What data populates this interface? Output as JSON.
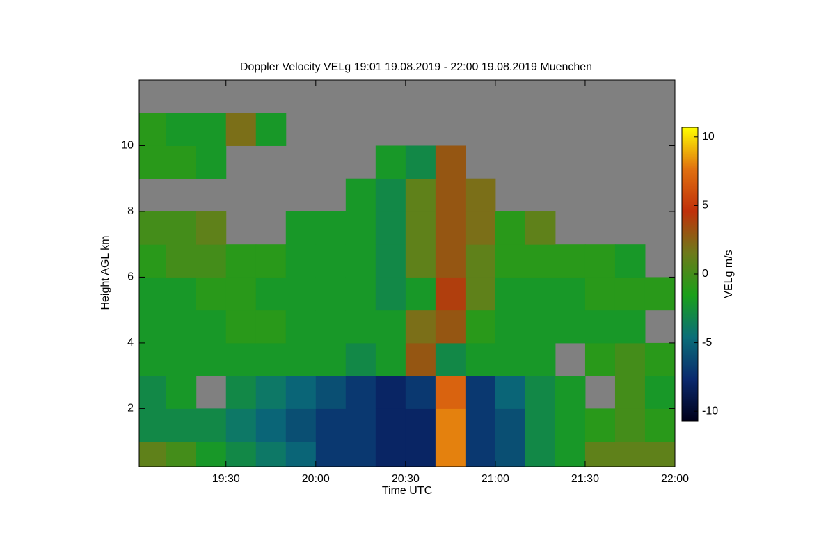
{
  "chart_data": {
    "type": "heatmap",
    "title": "Doppler Velocity VELg   19:01 19.08.2019 - 22:00 19.08.2019 Muenchen",
    "x_label": "Time UTC",
    "y_label": "Height AGL km",
    "colorbar_label": "VELg m/s",
    "xlim": [
      19.0167,
      22.0
    ],
    "xticks": [
      {
        "value": 19.5,
        "label": "19:30"
      },
      {
        "value": 20.0,
        "label": "20:00"
      },
      {
        "value": 20.5,
        "label": "20:30"
      },
      {
        "value": 21.0,
        "label": "21:00"
      },
      {
        "value": 21.5,
        "label": "21:30"
      },
      {
        "value": 22.0,
        "label": "22:00"
      }
    ],
    "ylim": [
      0.23,
      12.0
    ],
    "yticks": [
      2,
      4,
      6,
      8,
      10
    ],
    "clim": [
      -10.7,
      10.7
    ],
    "cticks": [
      10,
      5,
      0,
      -5,
      -10
    ],
    "background": "#808080",
    "colors": [
      "#00001a",
      "#0a2a6e",
      "#0a6e78",
      "#1aa01a",
      "#6e7a1a",
      "#c0300a",
      "#e07010",
      "#ffff00"
    ],
    "x_bins": [
      19.0167,
      19.1667,
      19.3333,
      19.5,
      19.6667,
      19.8333,
      20.0,
      20.1667,
      20.3333,
      20.5,
      20.6667,
      20.8333,
      21.0,
      21.1667,
      21.3333,
      21.5,
      21.6667,
      21.8333,
      22.0
    ],
    "y_bins": [
      0.23,
      1,
      2,
      3,
      4,
      5,
      6,
      7,
      8,
      9,
      10,
      11,
      12
    ],
    "values": [
      [
        1,
        0,
        -2,
        -3,
        -4,
        -5,
        -7,
        -7,
        -8,
        -8,
        8,
        -7,
        -6,
        -3,
        -2,
        1,
        1,
        1
      ],
      [
        -3,
        -3,
        -3,
        -4,
        -5,
        -6,
        -7,
        -7,
        -8,
        -8,
        8,
        -7,
        -6,
        -3,
        -2,
        -1,
        0,
        -1
      ],
      [
        -3,
        -2,
        null,
        -3,
        -4,
        -5,
        -6,
        -7,
        -8,
        -7,
        7,
        -7,
        -5,
        -3,
        -2,
        null,
        0,
        -2
      ],
      [
        -2,
        -2,
        -2,
        -2,
        -2,
        -2,
        -2,
        -3,
        -2,
        3,
        -3,
        -2,
        -2,
        -2,
        null,
        -1,
        0,
        -1
      ],
      [
        -2,
        -2,
        -2,
        -1,
        -1,
        -2,
        -2,
        -2,
        -2,
        2,
        3,
        -1,
        -2,
        -2,
        -2,
        -2,
        -2,
        null
      ],
      [
        -2,
        -2,
        -1,
        -1,
        -2,
        -2,
        -2,
        -2,
        -3,
        -2,
        4,
        1,
        -2,
        -2,
        -2,
        -1,
        -1,
        -1
      ],
      [
        -1,
        0,
        0,
        -1,
        -1,
        -2,
        -2,
        -2,
        -3,
        1,
        3,
        1,
        -1,
        -1,
        -1,
        -1,
        -2,
        null
      ],
      [
        0,
        0,
        1,
        null,
        null,
        -2,
        -2,
        -2,
        -3,
        1,
        3,
        2,
        -1,
        1,
        null,
        null,
        null,
        null
      ],
      [
        null,
        null,
        null,
        null,
        null,
        null,
        null,
        -2,
        -3,
        1,
        3,
        2,
        null,
        null,
        null,
        null,
        null,
        null
      ],
      [
        -1,
        -1,
        -2,
        null,
        null,
        null,
        null,
        null,
        -2,
        -3,
        3,
        null,
        null,
        null,
        null,
        null,
        null,
        null
      ],
      [
        -1,
        -2,
        -2,
        2,
        -2,
        null,
        null,
        null,
        null,
        null,
        null,
        null,
        null,
        null,
        null,
        null,
        null,
        null
      ],
      [
        null,
        null,
        null,
        null,
        null,
        null,
        null,
        null,
        null,
        null,
        null,
        null,
        null,
        null,
        null,
        null,
        null,
        null
      ]
    ]
  }
}
